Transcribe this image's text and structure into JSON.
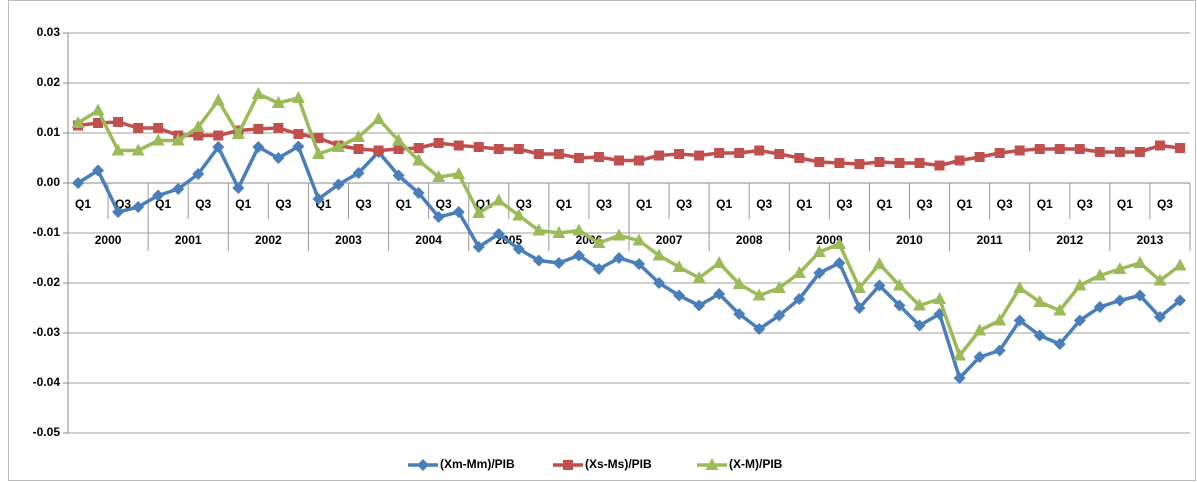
{
  "chart_data": {
    "type": "line",
    "categories": [
      "Q1",
      null,
      "Q3",
      null,
      "Q1",
      null,
      "Q3",
      null,
      "Q1",
      null,
      "Q3",
      null,
      "Q1",
      null,
      "Q3",
      null,
      "Q1",
      null,
      "Q3",
      null,
      "Q1",
      null,
      "Q3",
      null,
      "Q1",
      null,
      "Q3",
      null,
      "Q1",
      null,
      "Q3",
      null,
      "Q1",
      null,
      "Q3",
      null,
      "Q1",
      null,
      "Q3",
      null,
      "Q1",
      null,
      "Q3",
      null,
      "Q1",
      null,
      "Q3",
      null,
      "Q1",
      null,
      "Q3",
      null,
      "Q1",
      null,
      "Q3",
      null
    ],
    "years": [
      "2000",
      "2001",
      "2002",
      "2003",
      "2004",
      "2005",
      "2006",
      "2007",
      "2008",
      "2009",
      "2010",
      "2011",
      "2012",
      "2013"
    ],
    "ylim": [
      -0.05,
      0.03
    ],
    "yticks": [
      0.03,
      0.02,
      0.01,
      {
        "value": 0,
        "label": "0.00"
      },
      -0.01,
      -0.02,
      -0.03,
      -0.04,
      -0.05
    ],
    "grid": true,
    "legend": "bottom",
    "series": [
      {
        "name": "(Xm-Mm)/PIB",
        "color": "#4a7ebb",
        "marker": "diamond",
        "values": [
          0.0,
          0.0025,
          -0.0058,
          -0.0048,
          -0.0025,
          -0.0012,
          0.0018,
          0.0072,
          -0.001,
          0.0072,
          0.005,
          0.0073,
          -0.0032,
          -0.0003,
          0.002,
          0.0062,
          0.0015,
          -0.002,
          -0.0068,
          -0.0058,
          -0.0128,
          -0.0102,
          -0.0132,
          -0.0155,
          -0.016,
          -0.0145,
          -0.0172,
          -0.015,
          -0.0162,
          -0.02,
          -0.0225,
          -0.0245,
          -0.0222,
          -0.0262,
          -0.0292,
          -0.0265,
          -0.0232,
          -0.018,
          -0.016,
          -0.025,
          -0.0205,
          -0.0245,
          -0.0285,
          -0.0262,
          -0.039,
          -0.0348,
          -0.0335,
          -0.0275,
          -0.0305,
          -0.0322,
          -0.0275,
          -0.0248,
          -0.0235,
          -0.0225,
          -0.0268,
          -0.0235
        ]
      },
      {
        "name": "(Xs-Ms)/PIB",
        "color": "#c0504d",
        "marker": "square",
        "values": [
          0.0115,
          0.012,
          0.0122,
          0.011,
          0.011,
          0.0095,
          0.0095,
          0.0095,
          0.0105,
          0.0108,
          0.011,
          0.0098,
          0.009,
          0.0075,
          0.0068,
          0.0065,
          0.0068,
          0.007,
          0.008,
          0.0075,
          0.0072,
          0.0068,
          0.0068,
          0.0058,
          0.0058,
          0.005,
          0.0052,
          0.0045,
          0.0045,
          0.0055,
          0.0058,
          0.0055,
          0.006,
          0.006,
          0.0065,
          0.0058,
          0.005,
          0.0042,
          0.004,
          0.0038,
          0.0042,
          0.004,
          0.004,
          0.0035,
          0.0045,
          0.0052,
          0.006,
          0.0065,
          0.0068,
          0.0068,
          0.0068,
          0.0062,
          0.0062,
          0.0062,
          0.0075,
          0.007
        ]
      },
      {
        "name": "(X-M)/PIB",
        "color": "#9bbb59",
        "marker": "triangle",
        "values": [
          0.012,
          0.0145,
          0.0065,
          0.0065,
          0.0085,
          0.0085,
          0.0112,
          0.0165,
          0.0098,
          0.0178,
          0.016,
          0.017,
          0.0058,
          0.0072,
          0.0092,
          0.0128,
          0.0085,
          0.0045,
          0.0012,
          0.0018,
          -0.006,
          -0.0035,
          -0.0065,
          -0.0095,
          -0.01,
          -0.0095,
          -0.012,
          -0.0105,
          -0.0115,
          -0.0145,
          -0.0168,
          -0.019,
          -0.016,
          -0.0202,
          -0.0225,
          -0.021,
          -0.018,
          -0.0138,
          -0.0122,
          -0.021,
          -0.0162,
          -0.0205,
          -0.0245,
          -0.0232,
          -0.0345,
          -0.0295,
          -0.0275,
          -0.021,
          -0.0238,
          -0.0255,
          -0.0205,
          -0.0185,
          -0.0172,
          -0.016,
          -0.0195,
          -0.0165
        ]
      }
    ]
  }
}
